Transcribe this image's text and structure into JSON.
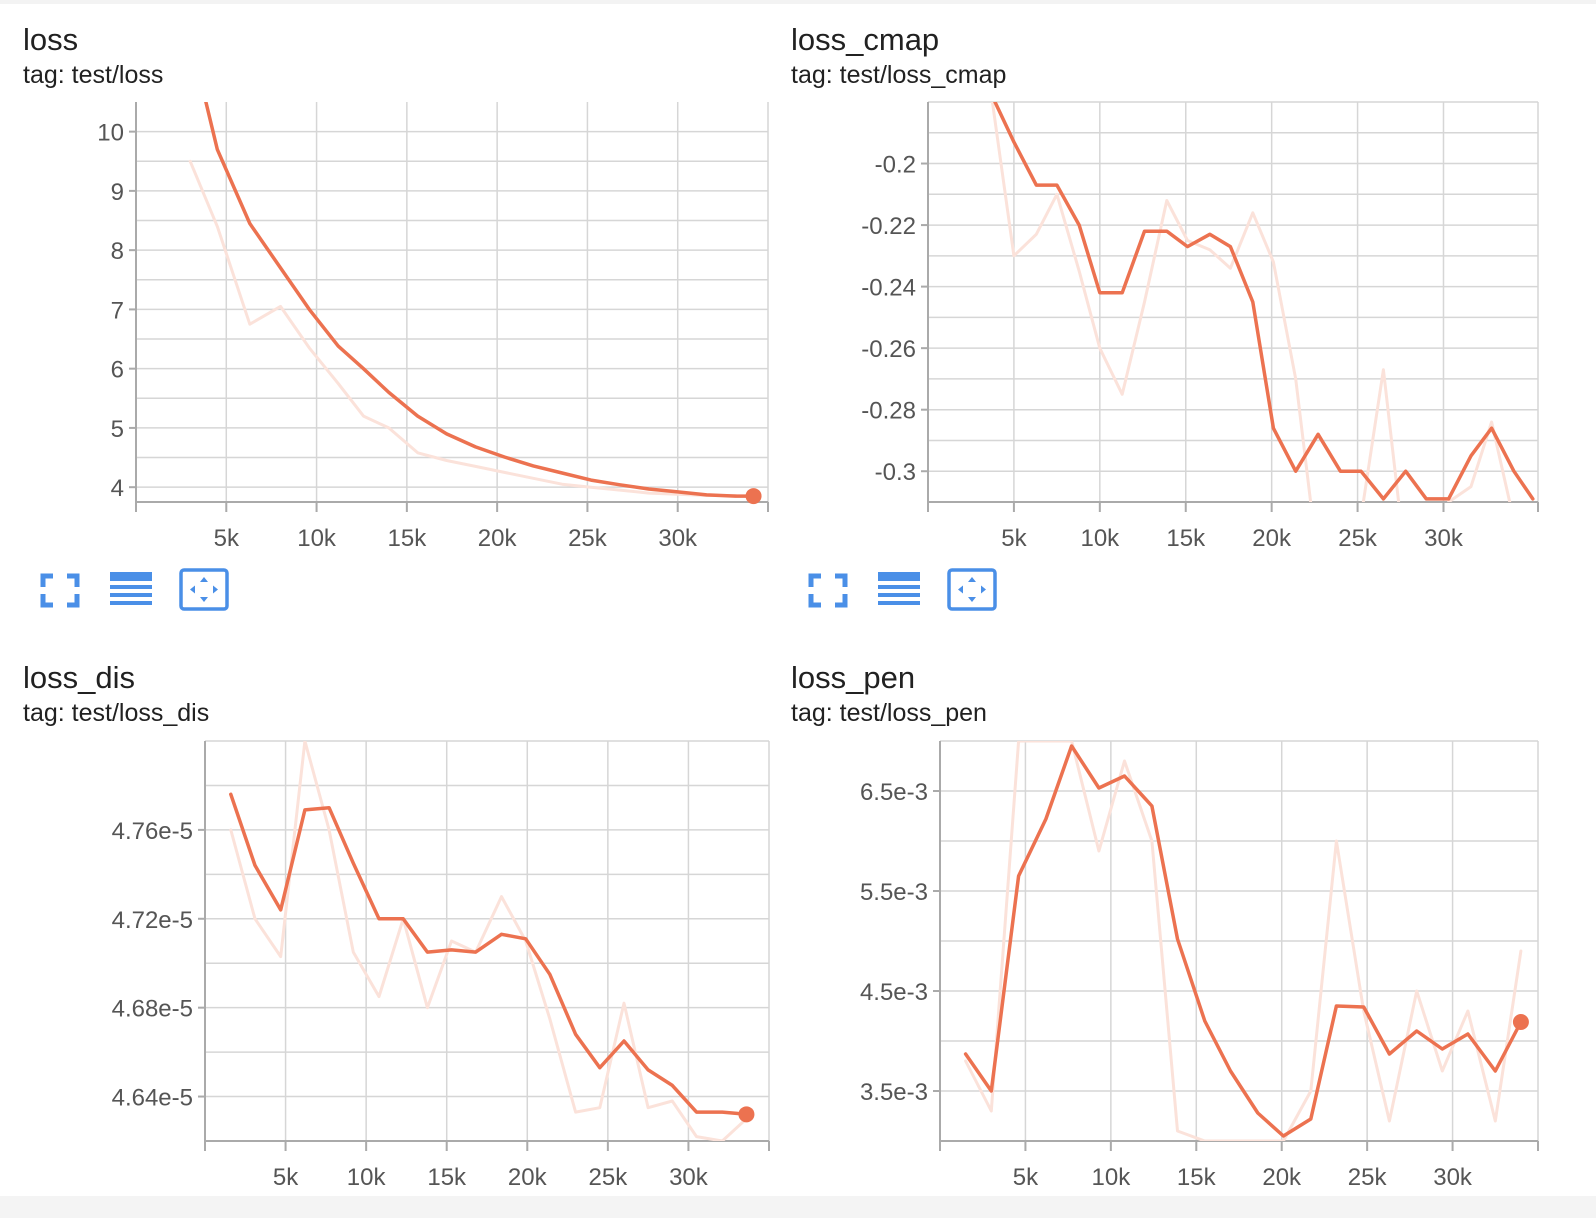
{
  "chart_data": [
    {
      "id": "loss",
      "type": "line",
      "title": "loss",
      "subtitle": "tag: test/loss",
      "x_ticks": [
        5000,
        10000,
        15000,
        20000,
        25000,
        30000
      ],
      "x_tick_labels": [
        "5k",
        "10k",
        "15k",
        "20k",
        "25k",
        "30k"
      ],
      "y_ticks": [
        4,
        5,
        6,
        7,
        8,
        9,
        10
      ],
      "y_tick_labels": [
        "4",
        "5",
        "6",
        "7",
        "8",
        "9",
        "10"
      ],
      "xlim": [
        0,
        35000
      ],
      "ylim": [
        3.75,
        10.5
      ],
      "grid": true,
      "show_end_marker": true,
      "series": [
        {
          "role": "raw",
          "x": [
            3000,
            4500,
            6300,
            8000,
            9600,
            11200,
            12600,
            14000,
            15600,
            17200,
            18800,
            20400,
            22000,
            23600,
            25200,
            26800,
            28400,
            30000,
            31600,
            33200
          ],
          "values": [
            9.5,
            8.4,
            6.75,
            7.05,
            6.35,
            5.75,
            5.2,
            5.0,
            4.58,
            4.45,
            4.35,
            4.25,
            4.15,
            4.05,
            4.0,
            3.95,
            3.9,
            3.88,
            3.86,
            3.86
          ]
        },
        {
          "role": "smoothed",
          "x": [
            3000,
            4500,
            6300,
            8000,
            9600,
            11200,
            12600,
            14000,
            15600,
            17200,
            18800,
            20400,
            22000,
            23600,
            25200,
            26800,
            28400,
            30000,
            31600,
            33200,
            34200
          ],
          "values": [
            11.6,
            9.7,
            8.45,
            7.7,
            7.0,
            6.38,
            6.0,
            5.6,
            5.2,
            4.9,
            4.68,
            4.51,
            4.36,
            4.24,
            4.12,
            4.04,
            3.97,
            3.92,
            3.87,
            3.85,
            3.85
          ]
        }
      ]
    },
    {
      "id": "loss_cmap",
      "type": "line",
      "title": "loss_cmap",
      "subtitle": "tag: test/loss_cmap",
      "x_ticks": [
        5000,
        10000,
        15000,
        20000,
        25000,
        30000
      ],
      "x_tick_labels": [
        "5k",
        "10k",
        "15k",
        "20k",
        "25k",
        "30k"
      ],
      "y_ticks": [
        -0.3,
        -0.28,
        -0.26,
        -0.24,
        -0.22,
        -0.2
      ],
      "y_tick_labels": [
        "-0.3",
        "-0.28",
        "-0.26",
        "-0.24",
        "-0.22",
        "-0.2"
      ],
      "xlim": [
        0,
        35500
      ],
      "ylim": [
        -0.31,
        -0.18
      ],
      "grid": true,
      "show_end_marker": false,
      "series": [
        {
          "role": "raw",
          "x": [
            3500,
            5000,
            6300,
            7500,
            8800,
            10000,
            11300,
            12600,
            13900,
            15100,
            16400,
            17600,
            18900,
            20100,
            21400,
            22700,
            24000,
            25200,
            26500,
            27800,
            29000,
            30300,
            31600,
            32800,
            34100,
            35200
          ],
          "values": [
            -0.17,
            -0.23,
            -0.223,
            -0.21,
            -0.235,
            -0.26,
            -0.275,
            -0.245,
            -0.212,
            -0.225,
            -0.228,
            -0.234,
            -0.216,
            -0.232,
            -0.27,
            -0.33,
            -0.33,
            -0.315,
            -0.267,
            -0.33,
            -0.33,
            -0.31,
            -0.305,
            -0.284,
            -0.316,
            -0.316
          ]
        },
        {
          "role": "smoothed",
          "x": [
            3900,
            5000,
            6300,
            7500,
            8800,
            10000,
            11300,
            12600,
            13900,
            15100,
            16400,
            17600,
            18900,
            20100,
            21400,
            22700,
            24000,
            25200,
            26500,
            27800,
            29000,
            30300,
            31600,
            32800,
            34100,
            35200
          ],
          "values": [
            -0.18,
            -0.193,
            -0.207,
            -0.207,
            -0.22,
            -0.242,
            -0.242,
            -0.222,
            -0.222,
            -0.227,
            -0.223,
            -0.227,
            -0.245,
            -0.286,
            -0.3,
            -0.288,
            -0.3,
            -0.3,
            -0.309,
            -0.3,
            -0.309,
            -0.309,
            -0.295,
            -0.286,
            -0.3,
            -0.309
          ]
        }
      ]
    },
    {
      "id": "loss_dis",
      "type": "line",
      "title": "loss_dis",
      "subtitle": "tag: test/loss_dis",
      "x_ticks": [
        5000,
        10000,
        15000,
        20000,
        25000,
        30000
      ],
      "x_tick_labels": [
        "5k",
        "10k",
        "15k",
        "20k",
        "25k",
        "30k"
      ],
      "y_ticks": [
        4.64e-05,
        4.68e-05,
        4.72e-05,
        4.76e-05
      ],
      "y_tick_labels": [
        "4.64e-5",
        "4.68e-5",
        "4.72e-5",
        "4.76e-5"
      ],
      "xlim": [
        0,
        35000
      ],
      "ylim": [
        4.62e-05,
        4.8e-05
      ],
      "grid": true,
      "show_end_marker": true,
      "series": [
        {
          "role": "raw",
          "x": [
            1600,
            3100,
            4700,
            6200,
            7700,
            9200,
            10800,
            12300,
            13800,
            15300,
            16800,
            18400,
            19900,
            21400,
            23000,
            24500,
            26000,
            27500,
            29000,
            30500,
            32100,
            33600
          ],
          "values": [
            4.76e-05,
            4.72e-05,
            4.703e-05,
            4.8e-05,
            4.76e-05,
            4.705e-05,
            4.685e-05,
            4.72e-05,
            4.68e-05,
            4.71e-05,
            4.705e-05,
            4.73e-05,
            4.71e-05,
            4.675e-05,
            4.633e-05,
            4.635e-05,
            4.682e-05,
            4.635e-05,
            4.638e-05,
            4.622e-05,
            4.62e-05,
            4.63e-05
          ]
        },
        {
          "role": "smoothed",
          "x": [
            1600,
            3100,
            4700,
            6200,
            7700,
            9200,
            10800,
            12300,
            13800,
            15300,
            16800,
            18400,
            19900,
            21400,
            23000,
            24500,
            26000,
            27500,
            29000,
            30500,
            32100,
            33600
          ],
          "values": [
            4.776e-05,
            4.744e-05,
            4.724e-05,
            4.769e-05,
            4.77e-05,
            4.745e-05,
            4.72e-05,
            4.72e-05,
            4.705e-05,
            4.706e-05,
            4.705e-05,
            4.713e-05,
            4.711e-05,
            4.695e-05,
            4.668e-05,
            4.653e-05,
            4.665e-05,
            4.652e-05,
            4.645e-05,
            4.633e-05,
            4.633e-05,
            4.632e-05
          ]
        }
      ]
    },
    {
      "id": "loss_pen",
      "type": "line",
      "title": "loss_pen",
      "subtitle": "tag: test/loss_pen",
      "x_ticks": [
        5000,
        10000,
        15000,
        20000,
        25000,
        30000
      ],
      "x_tick_labels": [
        "5k",
        "10k",
        "15k",
        "20k",
        "25k",
        "30k"
      ],
      "y_ticks": [
        0.0035,
        0.0045,
        0.0055,
        0.0065
      ],
      "y_tick_labels": [
        "3.5e-3",
        "4.5e-3",
        "5.5e-3",
        "6.5e-3"
      ],
      "xlim": [
        0,
        35000
      ],
      "ylim": [
        0.003,
        0.007
      ],
      "grid": true,
      "show_end_marker": true,
      "series": [
        {
          "role": "raw",
          "x": [
            1500,
            3000,
            4600,
            6200,
            7700,
            9300,
            10800,
            12400,
            13900,
            15500,
            17000,
            18600,
            20100,
            21700,
            23200,
            24800,
            26300,
            27900,
            29400,
            30900,
            32500,
            34000
          ],
          "values": [
            0.0038,
            0.0033,
            0.007,
            0.007,
            0.007,
            0.0059,
            0.0068,
            0.006,
            0.0031,
            0.003,
            0.003,
            0.003,
            0.003,
            0.0035,
            0.006,
            0.0043,
            0.0032,
            0.0045,
            0.0037,
            0.0043,
            0.0032,
            0.0049
          ]
        },
        {
          "role": "smoothed",
          "x": [
            1500,
            3000,
            4600,
            6200,
            7700,
            9300,
            10800,
            12400,
            13900,
            15500,
            17000,
            18600,
            20100,
            21700,
            23200,
            24800,
            26300,
            27900,
            29400,
            30900,
            32500,
            34000
          ],
          "values": [
            0.00387,
            0.0035,
            0.00565,
            0.00622,
            0.00695,
            0.00653,
            0.00665,
            0.00635,
            0.00502,
            0.0042,
            0.0037,
            0.00328,
            0.00305,
            0.00322,
            0.00435,
            0.00434,
            0.00387,
            0.0041,
            0.00392,
            0.00407,
            0.0037,
            0.00419
          ]
        }
      ]
    }
  ],
  "colors": {
    "smoothed_line": "#ec7250",
    "raw_line": "#fbe2da",
    "grid": "#d6d6d6",
    "axis": "#aaaaaa",
    "tick_text": "#555555",
    "toolbar_icon": "#4a8fe7"
  },
  "toolbar": {
    "icons": [
      "fullscreen-icon",
      "data-table-icon",
      "fit-domain-icon"
    ]
  }
}
